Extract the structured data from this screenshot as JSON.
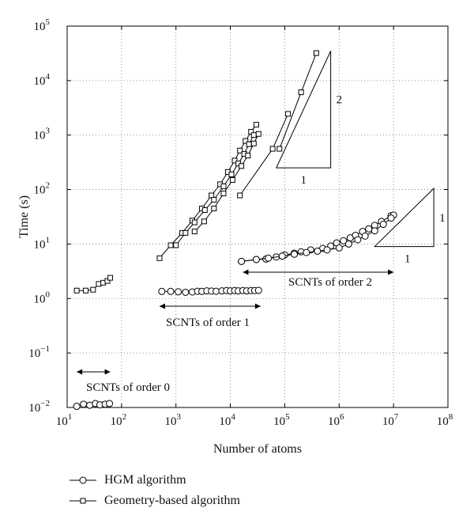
{
  "chart_data": {
    "type": "scatter",
    "xscale": "log",
    "yscale": "log",
    "xlabel": "Number of atoms",
    "ylabel": "Time (s)",
    "xlim": [
      10,
      100000000
    ],
    "ylim": [
      0.01,
      100000
    ],
    "x_ticks": [
      {
        "v": 10,
        "base": "10",
        "exp": "1"
      },
      {
        "v": 100,
        "base": "10",
        "exp": "2"
      },
      {
        "v": 1000,
        "base": "10",
        "exp": "3"
      },
      {
        "v": 10000,
        "base": "10",
        "exp": "4"
      },
      {
        "v": 100000,
        "base": "10",
        "exp": "5"
      },
      {
        "v": 1000000,
        "base": "10",
        "exp": "6"
      },
      {
        "v": 10000000,
        "base": "10",
        "exp": "7"
      },
      {
        "v": 100000000,
        "base": "10",
        "exp": "8"
      }
    ],
    "y_ticks": [
      {
        "v": 0.01,
        "base": "10",
        "exp": "−2"
      },
      {
        "v": 0.1,
        "base": "10",
        "exp": "−1"
      },
      {
        "v": 1,
        "base": "10",
        "exp": "0"
      },
      {
        "v": 10,
        "base": "10",
        "exp": "1"
      },
      {
        "v": 100,
        "base": "10",
        "exp": "2"
      },
      {
        "v": 1000,
        "base": "10",
        "exp": "3"
      },
      {
        "v": 10000,
        "base": "10",
        "exp": "4"
      },
      {
        "v": 100000,
        "base": "10",
        "exp": "5"
      }
    ],
    "grid": true,
    "legend_placement": "bottom-left",
    "series": [
      {
        "name": "HGM algorithm",
        "marker": "circle",
        "segments": [
          [
            [
              15,
              0.0105
            ],
            [
              20,
              0.0115
            ],
            [
              26,
              0.011
            ],
            [
              33,
              0.0118
            ],
            [
              40,
              0.0112
            ],
            [
              50,
              0.0115
            ],
            [
              60,
              0.0118
            ]
          ],
          [
            [
              550,
              1.35
            ],
            [
              800,
              1.35
            ],
            [
              1100,
              1.33
            ],
            [
              1500,
              1.3
            ],
            [
              2000,
              1.32
            ],
            [
              2500,
              1.36
            ],
            [
              3000,
              1.35
            ],
            [
              3700,
              1.38
            ],
            [
              4500,
              1.37
            ],
            [
              5500,
              1.36
            ],
            [
              7000,
              1.38
            ],
            [
              8500,
              1.4
            ],
            [
              10000,
              1.38
            ],
            [
              12000,
              1.4
            ],
            [
              14000,
              1.38
            ],
            [
              17000,
              1.4
            ],
            [
              20000,
              1.38
            ],
            [
              24000,
              1.4
            ],
            [
              28000,
              1.4
            ],
            [
              33000,
              1.41
            ]
          ],
          [
            [
              16000,
              4.8
            ],
            [
              30000,
              5.2
            ],
            [
              45000,
              5.3
            ],
            [
              70000,
              5.8
            ],
            [
              100000,
              6.3
            ],
            [
              150000,
              6.8
            ],
            [
              200000,
              7.2
            ],
            [
              300000,
              7.8
            ],
            [
              500000,
              8.3
            ],
            [
              700000,
              9.2
            ],
            [
              900000,
              10.5
            ],
            [
              1200000,
              11.5
            ],
            [
              1600000,
              13
            ],
            [
              2000000,
              14.5
            ],
            [
              2700000,
              17
            ],
            [
              3500000,
              19
            ],
            [
              4500000,
              22
            ],
            [
              6000000,
              26
            ],
            [
              9000000,
              33
            ],
            [
              10000000,
              34
            ]
          ],
          [
            [
              16000,
              4.8
            ],
            [
              30000,
              5.2
            ],
            [
              50000,
              5.5
            ],
            [
              90000,
              6.0
            ],
            [
              150000,
              6.5
            ],
            [
              250000,
              7.0
            ],
            [
              400000,
              7.4
            ],
            [
              600000,
              7.8
            ],
            [
              1000000,
              8.5
            ],
            [
              1500000,
              10
            ],
            [
              2200000,
              12
            ],
            [
              3000000,
              14
            ],
            [
              4500000,
              17.5
            ],
            [
              6500000,
              23
            ],
            [
              9000000,
              30
            ]
          ]
        ]
      },
      {
        "name": "Geometry-based algorithm",
        "marker": "square",
        "segments": [
          [
            [
              15,
              1.4
            ],
            [
              22,
              1.4
            ],
            [
              30,
              1.45
            ],
            [
              38,
              1.85
            ],
            [
              46,
              1.95
            ],
            [
              55,
              2.1
            ],
            [
              62,
              2.4
            ]
          ],
          [
            [
              500,
              5.5
            ],
            [
              800,
              9.5
            ],
            [
              1300,
              16
            ],
            [
              2000,
              27
            ],
            [
              3000,
              45
            ],
            [
              4500,
              78
            ],
            [
              6500,
              125
            ],
            [
              9000,
              210
            ],
            [
              12000,
              340
            ],
            [
              15000,
              520
            ],
            [
              19000,
              780
            ],
            [
              24000,
              1150
            ],
            [
              30000,
              1550
            ]
          ],
          [
            [
              1000,
              9.5
            ],
            [
              1500,
              16
            ],
            [
              2200,
              25
            ],
            [
              3400,
              42
            ],
            [
              5000,
              65
            ],
            [
              7500,
              115
            ],
            [
              10500,
              190
            ],
            [
              14000,
              300
            ],
            [
              18000,
              450
            ],
            [
              22000,
              680
            ],
            [
              27000,
              1000
            ]
          ],
          [
            [
              2200,
              17
            ],
            [
              3300,
              26
            ],
            [
              5000,
              45
            ],
            [
              7500,
              85
            ],
            [
              11000,
              150
            ],
            [
              16000,
              270
            ],
            [
              21000,
              420
            ],
            [
              27000,
              700
            ],
            [
              33000,
              1050
            ]
          ],
          [
            [
              15000,
              78
            ],
            [
              60000,
              560
            ],
            [
              115000,
              2450
            ]
          ],
          [
            [
              80000,
              560
            ],
            [
              200000,
              6100
            ],
            [
              380000,
              32000
            ]
          ]
        ]
      }
    ],
    "annotations": {
      "order0": "SCNTs of order 0",
      "order1": "SCNTs of order 1",
      "order2": "SCNTs of order 2",
      "slope_big_rise": "2",
      "slope_big_run": "1",
      "slope_small_rise": "1",
      "slope_small_run": "1"
    }
  }
}
